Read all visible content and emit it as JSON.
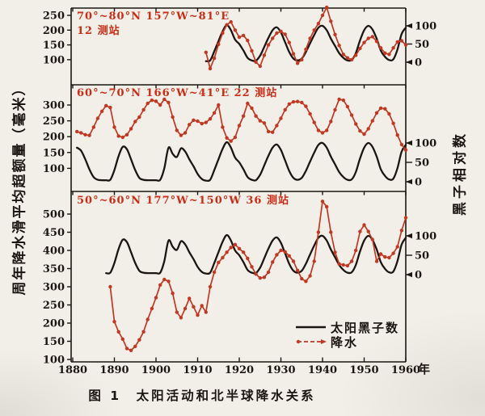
{
  "page": {
    "background": "#f2efe8",
    "caption": "图 1　太阳活动和北半球降水关系"
  },
  "axes": {
    "left_label": "周年降水滑平均超额量（毫米）",
    "right_label": "黑子相对数",
    "x_unit": "年"
  },
  "legend": {
    "sunspot": "太阳黑子数",
    "precip": "降水"
  },
  "colors": {
    "ink": "#1b1611",
    "red": "#c13823",
    "red_text": "#c92d17",
    "background": "#f2efe8"
  },
  "chart_data": {
    "type": "line",
    "title": "图 1　太阳活动和北半球降水关系",
    "xlabel": "年",
    "x_range": [
      1880,
      1960
    ],
    "x_ticks": [
      1880,
      1890,
      1900,
      1910,
      1920,
      1930,
      1940,
      1950,
      1960
    ],
    "legend_entries": [
      "太阳黑子数",
      "降水"
    ],
    "right_axis_label": "黑子相对数",
    "left_axis_label": "周年降水滑平均超额量（毫米）",
    "sunspot": {
      "name": "太阳黑子数",
      "axis": "right",
      "start_year": 1881,
      "values": [
        88,
        80,
        58,
        32,
        12,
        5,
        4,
        4,
        5,
        30,
        66,
        90,
        84,
        58,
        30,
        10,
        5,
        4,
        4,
        4,
        5,
        35,
        88,
        72,
        64,
        86,
        78,
        58,
        40,
        20,
        7,
        3,
        5,
        30,
        58,
        85,
        102,
        88,
        62,
        50,
        32,
        12,
        5,
        4,
        18,
        42,
        67,
        88,
        96,
        82,
        55,
        28,
        10,
        5,
        10,
        28,
        52,
        75,
        95,
        100,
        88,
        65,
        45,
        25,
        12,
        5,
        6,
        25,
        60,
        88,
        100,
        90,
        65,
        32,
        15,
        6,
        8,
        35,
        78,
        95
      ]
    },
    "panels": [
      {
        "name": "panel-70-80N",
        "annotation": "70°~80°N   157°W~81°E",
        "annotation2": "12 测站",
        "left_ticks": [
          250,
          200,
          150,
          100
        ],
        "right_ticks": [
          100,
          50,
          0
        ],
        "sunspot_from": 1912,
        "precip": {
          "name": "降水",
          "axis": "left",
          "start_year": 1912,
          "values": [
            125,
            70,
            105,
            152,
            190,
            218,
            228,
            200,
            176,
            182,
            165,
            130,
            92,
            78,
            115,
            150,
            172,
            190,
            196,
            186,
            158,
            120,
            88,
            100,
            135,
            172,
            200,
            222,
            250,
            277,
            230,
            185,
            148,
            118,
            106,
            100,
            115,
            138,
            158,
            172,
            178,
            162,
            140,
            122,
            118,
            140,
            160,
            164,
            150
          ]
        }
      },
      {
        "name": "panel-60-70N",
        "annotation": "60°~70°N   166°W~41°E   22 测站",
        "annotation2": "",
        "left_ticks": [
          300,
          250,
          200,
          150,
          100
        ],
        "right_ticks": [
          100,
          50,
          0
        ],
        "sunspot_from": 1881,
        "precip": {
          "name": "降水",
          "axis": "left",
          "start_year": 1881,
          "values": [
            216,
            212,
            206,
            204,
            230,
            258,
            280,
            298,
            292,
            230,
            202,
            198,
            206,
            225,
            248,
            262,
            285,
            305,
            315,
            312,
            300,
            318,
            308,
            262,
            220,
            204,
            212,
            238,
            252,
            249,
            241,
            245,
            256,
            275,
            300,
            230,
            196,
            186,
            198,
            235,
            265,
            305,
            290,
            265,
            250,
            243,
            216,
            214,
            235,
            258,
            285,
            303,
            310,
            311,
            308,
            296,
            272,
            245,
            220,
            212,
            220,
            248,
            285,
            318,
            315,
            295,
            268,
            240,
            218,
            208,
            225,
            250,
            275,
            290,
            288,
            272,
            242,
            205,
            175,
            158
          ]
        }
      },
      {
        "name": "panel-50-60N",
        "annotation": "50°~60°N   177°W~150°W   36 测站",
        "annotation2": "",
        "left_ticks": [
          500,
          450,
          400,
          350,
          300,
          250,
          200,
          150,
          100
        ],
        "right_ticks": [
          100,
          50,
          0
        ],
        "sunspot_from": 1888,
        "precip": {
          "name": "降水",
          "axis": "left",
          "start_year": 1889,
          "values": [
            300,
            204,
            176,
            156,
            130,
            125,
            136,
            154,
            176,
            210,
            240,
            270,
            305,
            320,
            315,
            282,
            230,
            215,
            240,
            268,
            245,
            222,
            248,
            230,
            300,
            340,
            367,
            380,
            395,
            408,
            416,
            405,
            395,
            378,
            355,
            335,
            324,
            326,
            340,
            368,
            388,
            400,
            396,
            385,
            370,
            345,
            322,
            315,
            330,
            370,
            450,
            535,
            520,
            450,
            395,
            363,
            360,
            358,
            370,
            400,
            452,
            470,
            452,
            430,
            370,
            390,
            382,
            380,
            392,
            410,
            455,
            490
          ]
        }
      }
    ]
  }
}
